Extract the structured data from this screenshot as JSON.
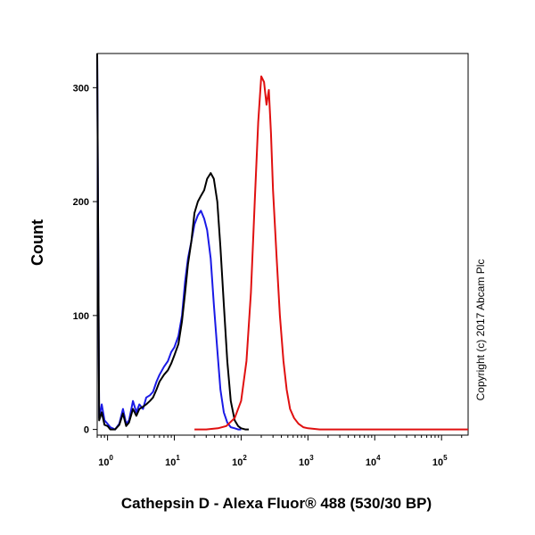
{
  "chart_data": {
    "type": "line",
    "xlabel": "Cathepsin D - Alexa Fluor® 488 (530/30 BP)",
    "ylabel": "Count",
    "x_scale": "log",
    "xlim": [
      0.7,
      250000
    ],
    "ylim": [
      -5,
      330
    ],
    "x_ticks": [
      {
        "base": "10",
        "exp": "0",
        "value": 1
      },
      {
        "base": "10",
        "exp": "1",
        "value": 10
      },
      {
        "base": "10",
        "exp": "2",
        "value": 100
      },
      {
        "base": "10",
        "exp": "3",
        "value": 1000
      },
      {
        "base": "10",
        "exp": "4",
        "value": 10000
      },
      {
        "base": "10",
        "exp": "5",
        "value": 100000
      }
    ],
    "y_ticks": [
      0,
      100,
      200,
      300
    ],
    "grid": false,
    "legend": "none",
    "series": [
      {
        "color": "#1a1ae6",
        "x": [
          0.7,
          0.75,
          0.82,
          0.9,
          1.0,
          1.1,
          1.3,
          1.5,
          1.7,
          1.9,
          2.1,
          2.4,
          2.7,
          3.0,
          3.4,
          3.8,
          4.3,
          4.8,
          5.4,
          6,
          7,
          8,
          9,
          10,
          11.5,
          13,
          14.5,
          16,
          18,
          20,
          22.5,
          25,
          28,
          31,
          35,
          39,
          44,
          49,
          55,
          62,
          70,
          80,
          90,
          100
        ],
        "y": [
          330,
          10,
          22,
          8,
          5,
          2,
          0,
          5,
          18,
          5,
          8,
          25,
          15,
          22,
          18,
          28,
          30,
          33,
          42,
          48,
          55,
          60,
          68,
          72,
          82,
          100,
          130,
          150,
          165,
          180,
          188,
          192,
          185,
          175,
          150,
          110,
          70,
          35,
          15,
          6,
          2,
          1,
          0,
          0
        ]
      },
      {
        "color": "#000000",
        "x": [
          0.7,
          0.75,
          0.82,
          0.9,
          1.0,
          1.1,
          1.3,
          1.5,
          1.7,
          1.9,
          2.1,
          2.4,
          2.7,
          3.0,
          3.4,
          3.8,
          4.3,
          4.8,
          5.4,
          6,
          7,
          8,
          9,
          10,
          11.5,
          13,
          14.5,
          16,
          18,
          20,
          22.5,
          25,
          28,
          31,
          35,
          39,
          44,
          49,
          55,
          62,
          70,
          80,
          90,
          100,
          115,
          130
        ],
        "y": [
          330,
          8,
          15,
          4,
          3,
          0,
          0,
          4,
          14,
          3,
          6,
          18,
          12,
          18,
          20,
          22,
          25,
          28,
          35,
          42,
          48,
          52,
          58,
          65,
          75,
          95,
          120,
          145,
          165,
          190,
          200,
          205,
          210,
          220,
          225,
          220,
          200,
          160,
          110,
          60,
          25,
          8,
          3,
          1,
          0,
          0
        ]
      },
      {
        "color": "#e01010",
        "x": [
          20,
          30,
          45,
          60,
          80,
          100,
          120,
          140,
          160,
          180,
          200,
          220,
          240,
          260,
          280,
          300,
          340,
          380,
          430,
          480,
          540,
          620,
          720,
          850,
          1000,
          1500,
          3000,
          250000
        ],
        "y": [
          0,
          0,
          1,
          3,
          10,
          25,
          60,
          120,
          200,
          270,
          310,
          305,
          285,
          298,
          260,
          210,
          150,
          100,
          60,
          35,
          18,
          10,
          5,
          2,
          1,
          0,
          0,
          0
        ]
      }
    ]
  },
  "copyright": "Copyright (c) 2017 Abcam Plc"
}
